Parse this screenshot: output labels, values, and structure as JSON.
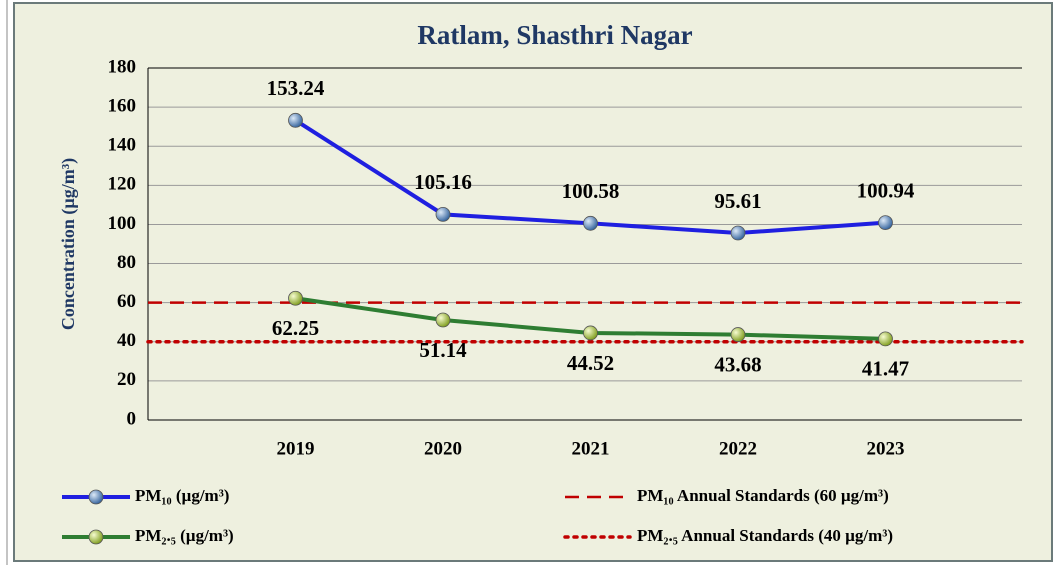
{
  "chart_data": {
    "type": "line",
    "title": "Ratlam, Shasthri Nagar",
    "y_label": "Concentration (µg/m³)",
    "categories": [
      "2019",
      "2020",
      "2021",
      "2022",
      "2023"
    ],
    "series": [
      {
        "name": "PM₁₀ (µg/m³)",
        "color": "#1f1fe0",
        "marker_color": "#4f81bd",
        "values": [
          153.24,
          105.16,
          100.58,
          95.61,
          100.94
        ]
      },
      {
        "name": "PM₂.₅ (µg/m³)",
        "color": "#2e7d32",
        "marker_color": "#b5d334",
        "values": [
          62.25,
          51.14,
          44.52,
          43.68,
          41.47
        ]
      }
    ],
    "reference_lines": [
      {
        "name": "PM₁₀ Annual Standards (60 µg/m³)",
        "value": 60,
        "color": "#c00000",
        "style": "dashed"
      },
      {
        "name": "PM₂.₅ Annual Standards (40 µg/m³)",
        "value": 40,
        "color": "#c00000",
        "style": "dotted"
      }
    ],
    "ylim": [
      0,
      180
    ],
    "yticks": [
      0,
      20,
      40,
      60,
      80,
      100,
      120,
      140,
      160,
      180
    ],
    "grid": true
  }
}
